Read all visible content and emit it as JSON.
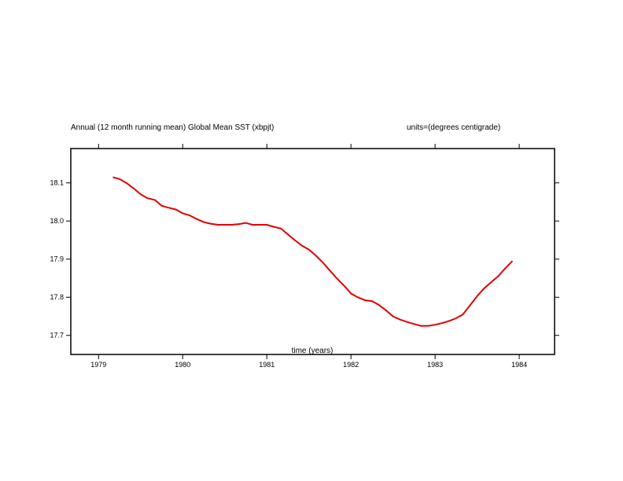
{
  "chart_data": {
    "type": "line",
    "title": "Annual (12 month running mean) Global Mean SST (xbpjt)",
    "units_label": "units=(degrees centigrade)",
    "xlabel": "time (years)",
    "ylabel": "",
    "xlim": [
      1978.67,
      1984.42
    ],
    "ylim": [
      17.65,
      18.19
    ],
    "x_ticks": [
      1979,
      1980,
      1981,
      1982,
      1983,
      1984
    ],
    "x_tick_labels": [
      "1979",
      "1980",
      "1981",
      "1982",
      "1983",
      "1984"
    ],
    "y_ticks": [
      17.7,
      17.8,
      17.9,
      18.0,
      18.1
    ],
    "y_tick_labels": [
      "17.7",
      "17.8",
      "17.9",
      "18.0",
      "18.1"
    ],
    "grid": false,
    "series": [
      {
        "color": "#e00000",
        "x": [
          1979.17,
          1979.25,
          1979.33,
          1979.42,
          1979.5,
          1979.58,
          1979.67,
          1979.75,
          1979.83,
          1979.92,
          1980.0,
          1980.08,
          1980.17,
          1980.25,
          1980.33,
          1980.42,
          1980.5,
          1980.58,
          1980.67,
          1980.75,
          1980.83,
          1980.92,
          1981.0,
          1981.08,
          1981.17,
          1981.25,
          1981.33,
          1981.42,
          1981.5,
          1981.58,
          1981.67,
          1981.75,
          1981.83,
          1981.92,
          1982.0,
          1982.08,
          1982.17,
          1982.25,
          1982.33,
          1982.42,
          1982.5,
          1982.58,
          1982.67,
          1982.75,
          1982.83,
          1982.92,
          1983.0,
          1983.08,
          1983.17,
          1983.25,
          1983.33,
          1983.42,
          1983.5,
          1983.58,
          1983.67,
          1983.75,
          1983.83,
          1983.92
        ],
        "y": [
          18.115,
          18.11,
          18.1,
          18.085,
          18.07,
          18.06,
          18.055,
          18.04,
          18.035,
          18.03,
          18.02,
          18.015,
          18.005,
          17.997,
          17.993,
          17.99,
          17.99,
          17.99,
          17.992,
          17.995,
          17.99,
          17.99,
          17.99,
          17.985,
          17.98,
          17.965,
          17.95,
          17.935,
          17.925,
          17.91,
          17.89,
          17.87,
          17.85,
          17.83,
          17.81,
          17.8,
          17.792,
          17.79,
          17.78,
          17.765,
          17.75,
          17.742,
          17.735,
          17.73,
          17.725,
          17.725,
          17.728,
          17.732,
          17.738,
          17.745,
          17.755,
          17.78,
          17.803,
          17.823,
          17.84,
          17.855,
          17.875,
          17.895
        ]
      }
    ]
  }
}
